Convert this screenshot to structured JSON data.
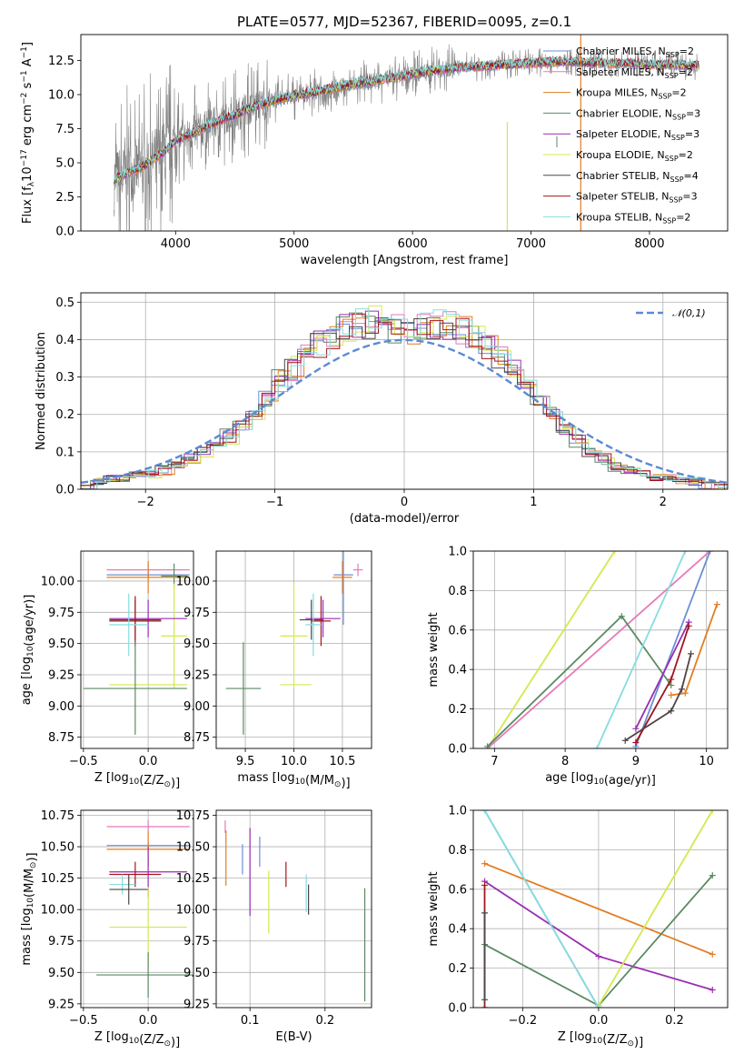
{
  "title": "PLATE=0577, MJD=52367, FIBERID=0095, z=0.1",
  "colors": {
    "Chabrier MILES": "#6a8fd6",
    "Salpeter MILES": "#e779b8",
    "Kroupa MILES": "#e37d25",
    "Chabrier ELODIE": "#5a8a63",
    "Salpeter ELODIE": "#9a2db3",
    "Kroupa ELODIE": "#d4e84c",
    "Chabrier STELIB": "#4e4446",
    "Salpeter STELIB": "#a3141c",
    "Kroupa STELIB": "#85dde0",
    "gaussian": "#5b8ad6",
    "grid": "#b0b0b0",
    "data": "#808080"
  },
  "chart_data": [
    {
      "id": "spectrum",
      "type": "line",
      "xlabel": "wavelength [Angstrom, rest frame]",
      "ylabel": "Flux [f$_\\lambda$10$^{-17}$ erg cm$^{-2}$ s$^{-1}$ A$^{-1}$]",
      "ylabel_parts": [
        "Flux [f",
        "λ",
        "10",
        "−17",
        " erg cm",
        "−2",
        " s",
        "−1",
        " A",
        "−1",
        "]"
      ],
      "xlim": [
        3200,
        8660
      ],
      "ylim": [
        0,
        14.4
      ],
      "xticks": [
        4000,
        5000,
        6000,
        7000,
        8000
      ],
      "yticks": [
        0.0,
        2.5,
        5.0,
        7.5,
        10.0,
        12.5
      ],
      "grid": false,
      "legend_position": "right",
      "legend": [
        {
          "name": "Chabrier MILES",
          "nssp": "2"
        },
        {
          "name": "Salpeter MILES",
          "nssp": "2"
        },
        {
          "name": "Kroupa MILES",
          "nssp": "2"
        },
        {
          "name": "Chabrier ELODIE",
          "nssp": "3"
        },
        {
          "name": "Salpeter ELODIE",
          "nssp": "3"
        },
        {
          "name": "Kroupa ELODIE",
          "nssp": "2"
        },
        {
          "name": "Chabrier STELIB",
          "nssp": "4"
        },
        {
          "name": "Salpeter STELIB",
          "nssp": "3"
        },
        {
          "name": "Kroupa STELIB",
          "nssp": "2"
        }
      ],
      "model_x": [
        3500,
        3600,
        3700,
        3800,
        3900,
        4000,
        4100,
        4200,
        4300,
        4400,
        4500,
        4600,
        4700,
        4800,
        4900,
        5000,
        5200,
        5400,
        5600,
        5800,
        6000,
        6200,
        6400,
        6600,
        6800,
        7000,
        7200,
        7400,
        7600,
        7800,
        8000,
        8200,
        8400
      ],
      "model_y": [
        3.8,
        4.3,
        4.6,
        5.2,
        5.8,
        6.6,
        7.0,
        7.4,
        7.8,
        8.2,
        8.5,
        8.9,
        9.2,
        9.5,
        9.7,
        9.9,
        10.2,
        10.6,
        10.9,
        11.2,
        11.5,
        11.8,
        12.0,
        12.1,
        12.2,
        12.3,
        12.4,
        12.4,
        12.3,
        12.3,
        12.2,
        12.2,
        12.1
      ],
      "data_amplitude": "large scatter below 4800 A, moderate above",
      "spikes": [
        {
          "x": 6800,
          "y0": 0.0,
          "y1": 8.0,
          "series": "Kroupa ELODIE"
        },
        {
          "x": 7420,
          "y0": 0.0,
          "y1": 14.4,
          "series": "Kroupa MILES"
        }
      ]
    },
    {
      "id": "residuals",
      "type": "histogram",
      "xlabel": "(data-model)/error",
      "ylabel": "Normed distribution",
      "xlim": [
        -2.5,
        2.5
      ],
      "ylim": [
        0,
        0.525
      ],
      "xticks": [
        -2,
        -1,
        0,
        1,
        2
      ],
      "yticks": [
        0.0,
        0.1,
        0.2,
        0.3,
        0.4,
        0.5
      ],
      "grid": true,
      "legend_position": "top-right",
      "curve_label": "𝒩(0,1)",
      "bin_edges": [
        -2.5,
        -2.4,
        -2.3,
        -2.2,
        -2.1,
        -2.0,
        -1.9,
        -1.8,
        -1.7,
        -1.6,
        -1.5,
        -1.4,
        -1.3,
        -1.2,
        -1.1,
        -1.0,
        -0.9,
        -0.8,
        -0.7,
        -0.6,
        -0.5,
        -0.4,
        -0.3,
        -0.2,
        -0.1,
        0.0,
        0.1,
        0.2,
        0.3,
        0.4,
        0.5,
        0.6,
        0.7,
        0.8,
        0.9,
        1.0,
        1.1,
        1.2,
        1.3,
        1.4,
        1.5,
        1.6,
        1.7,
        1.8,
        1.9,
        2.0,
        2.1,
        2.2,
        2.3,
        2.4,
        2.5
      ],
      "hist_values": [
        0.01,
        0.02,
        0.03,
        0.03,
        0.04,
        0.04,
        0.05,
        0.06,
        0.08,
        0.1,
        0.12,
        0.14,
        0.17,
        0.2,
        0.24,
        0.29,
        0.32,
        0.36,
        0.39,
        0.41,
        0.43,
        0.44,
        0.45,
        0.44,
        0.43,
        0.42,
        0.44,
        0.45,
        0.44,
        0.43,
        0.41,
        0.39,
        0.36,
        0.32,
        0.28,
        0.24,
        0.2,
        0.16,
        0.13,
        0.1,
        0.08,
        0.06,
        0.05,
        0.04,
        0.03,
        0.03,
        0.02,
        0.02,
        0.01,
        0.01
      ]
    },
    {
      "id": "age_vs_Z",
      "type": "errorbar",
      "xlabel": "Z [log10(Z/Z⊙)]",
      "ylabel": "age  [log10(age/yr)]",
      "xlim": [
        -0.52,
        0.35
      ],
      "ylim": [
        8.66,
        10.24
      ],
      "xticks": [
        -0.5,
        0.0
      ],
      "yticks": [
        8.75,
        9.0,
        9.25,
        9.5,
        9.75,
        10.0
      ],
      "grid": true,
      "points": [
        {
          "series": "Salpeter MILES",
          "x": 0.0,
          "xerr": 0.32,
          "y": 10.09,
          "yerr": 0.05
        },
        {
          "series": "Chabrier MILES",
          "x": 0.0,
          "xerr": 0.32,
          "y": 10.05,
          "yerr": 0.04
        },
        {
          "series": "Chabrier ELODIE",
          "x": 0.2,
          "xerr": 0.1,
          "y": 10.04,
          "yerr": 0.1
        },
        {
          "series": "Kroupa MILES",
          "x": 0.0,
          "xerr": 0.32,
          "y": 10.03,
          "yerr": 0.13
        },
        {
          "series": "Kroupa ELODIE",
          "x": 0.2,
          "xerr": 0.1,
          "y": 9.56,
          "yerr": 0.42
        },
        {
          "series": "Salpeter ELODIE",
          "x": 0.0,
          "xerr": 0.3,
          "y": 9.7,
          "yerr": 0.15
        },
        {
          "series": "Chabrier STELIB",
          "x": -0.1,
          "xerr": 0.2,
          "y": 9.69,
          "yerr": 0.16
        },
        {
          "series": "Salpeter STELIB",
          "x": -0.1,
          "xerr": 0.2,
          "y": 9.68,
          "yerr": 0.2
        },
        {
          "series": "Kroupa STELIB",
          "x": -0.15,
          "xerr": 0.15,
          "y": 9.65,
          "yerr": 0.25
        },
        {
          "series": "Kroupa ELODIE",
          "x": 0.0,
          "xerr": 0.3,
          "y": 9.17,
          "yerr": 0.0
        },
        {
          "series": "Chabrier ELODIE",
          "x": -0.1,
          "xerr": 0.4,
          "y": 9.14,
          "yerr": 0.37
        }
      ]
    },
    {
      "id": "age_vs_mass",
      "type": "errorbar",
      "xlabel": "mass [log10(M/M⊙)]",
      "ylabel": "",
      "xlim": [
        9.2,
        10.8
      ],
      "ylim": [
        8.66,
        10.24
      ],
      "xticks": [
        9.5,
        10.0,
        10.5
      ],
      "yticks": [
        8.75,
        9.0,
        9.25,
        9.5,
        9.75,
        10.0
      ],
      "grid": true,
      "points": [
        {
          "series": "Salpeter MILES",
          "x": 10.66,
          "xerr": 0.05,
          "y": 10.09,
          "yerr": 0.05
        },
        {
          "series": "Chabrier MILES",
          "x": 10.51,
          "xerr": 0.1,
          "y": 10.05,
          "yerr": 0.4
        },
        {
          "series": "Kroupa MILES",
          "x": 10.5,
          "xerr": 0.1,
          "y": 10.03,
          "yerr": 0.13
        },
        {
          "series": "Chabrier ELODIE",
          "x": 9.48,
          "xerr": 0.18,
          "y": 9.14,
          "yerr": 0.37
        },
        {
          "series": "Kroupa ELODIE",
          "x": 10.0,
          "xerr": 0.14,
          "y": 9.56,
          "yerr": 0.42
        },
        {
          "series": "Salpeter ELODIE",
          "x": 10.3,
          "xerr": 0.18,
          "y": 9.7,
          "yerr": 0.15
        },
        {
          "series": "Chabrier STELIB",
          "x": 10.18,
          "xerr": 0.12,
          "y": 9.69,
          "yerr": 0.16
        },
        {
          "series": "Salpeter STELIB",
          "x": 10.28,
          "xerr": 0.1,
          "y": 9.68,
          "yerr": 0.2
        },
        {
          "series": "Kroupa STELIB",
          "x": 10.2,
          "xerr": 0.08,
          "y": 9.65,
          "yerr": 0.25
        },
        {
          "series": "Kroupa ELODIE",
          "x": 10.02,
          "xerr": 0.16,
          "y": 9.17,
          "yerr": 0.0
        }
      ]
    },
    {
      "id": "weight_vs_age",
      "type": "line",
      "xlabel": "age  [log10(age/yr)]",
      "ylabel": "mass weight",
      "xlim": [
        6.7,
        10.3
      ],
      "ylim": [
        0,
        1.0
      ],
      "xticks": [
        7,
        8,
        9,
        10
      ],
      "yticks": [
        0.0,
        0.2,
        0.4,
        0.6,
        0.8,
        1.0
      ],
      "grid": true,
      "series": [
        {
          "name": "Kroupa ELODIE",
          "x": [
            6.9,
            8.7,
            10.2
          ],
          "y": [
            0.0,
            1.0,
            1.4
          ]
        },
        {
          "name": "Salpeter MILES",
          "x": [
            6.9,
            10.05,
            10.1
          ],
          "y": [
            0.0,
            1.0,
            1.05
          ]
        },
        {
          "name": "Chabrier ELODIE",
          "x": [
            6.9,
            8.8,
            9.5
          ],
          "y": [
            0.01,
            0.67,
            0.32
          ]
        },
        {
          "name": "Kroupa STELIB",
          "x": [
            8.45,
            9.7,
            10.1
          ],
          "y": [
            0.0,
            1.0,
            1.3
          ]
        },
        {
          "name": "Chabrier MILES",
          "x": [
            9.0,
            10.05
          ],
          "y": [
            0.01,
            1.0
          ]
        },
        {
          "name": "Kroupa MILES",
          "x": [
            9.5,
            9.7,
            10.15
          ],
          "y": [
            0.27,
            0.28,
            0.73
          ]
        },
        {
          "name": "Salpeter ELODIE",
          "x": [
            9.0,
            9.75
          ],
          "y": [
            0.1,
            0.64
          ]
        },
        {
          "name": "Salpeter STELIB",
          "x": [
            9.0,
            9.5,
            9.75
          ],
          "y": [
            0.03,
            0.35,
            0.62
          ]
        },
        {
          "name": "Chabrier STELIB",
          "x": [
            8.85,
            9.5,
            9.65,
            9.78
          ],
          "y": [
            0.04,
            0.19,
            0.3,
            0.48
          ]
        }
      ]
    },
    {
      "id": "mass_vs_Z",
      "type": "errorbar",
      "xlabel": "Z [log10(Z/Z⊙)]",
      "ylabel": "mass [log10(M/M⊙)]",
      "xlim": [
        -0.52,
        0.35
      ],
      "ylim": [
        9.22,
        10.79
      ],
      "xticks": [
        -0.5,
        0.0
      ],
      "yticks": [
        9.25,
        9.5,
        9.75,
        10.0,
        10.25,
        10.5,
        10.75
      ],
      "grid": true,
      "points": [
        {
          "series": "Salpeter MILES",
          "x": 0.0,
          "xerr": 0.32,
          "y": 10.66,
          "yerr": 0.05
        },
        {
          "series": "Chabrier MILES",
          "x": 0.0,
          "xerr": 0.32,
          "y": 10.51,
          "yerr": 0.03
        },
        {
          "series": "Kroupa MILES",
          "x": 0.0,
          "xerr": 0.32,
          "y": 10.48,
          "yerr": 0.14
        },
        {
          "series": "Salpeter ELODIE",
          "x": 0.0,
          "xerr": 0.3,
          "y": 10.3,
          "yerr": 0.2
        },
        {
          "series": "Salpeter STELIB",
          "x": -0.1,
          "xerr": 0.2,
          "y": 10.28,
          "yerr": 0.1
        },
        {
          "series": "Kroupa STELIB",
          "x": -0.2,
          "xerr": 0.1,
          "y": 10.2,
          "yerr": 0.08
        },
        {
          "series": "Chabrier STELIB",
          "x": -0.15,
          "xerr": 0.15,
          "y": 10.16,
          "yerr": 0.12
        },
        {
          "series": "Kroupa ELODIE",
          "x": 0.0,
          "xerr": 0.3,
          "y": 9.86,
          "yerr": 0.32
        },
        {
          "series": "Chabrier ELODIE",
          "x": 0.0,
          "xerr": 0.4,
          "y": 9.48,
          "yerr": 0.18
        }
      ]
    },
    {
      "id": "mass_vs_ebv",
      "type": "errorbar",
      "xlabel": "E(B-V)",
      "ylabel": "",
      "xlim": [
        0.055,
        0.262
      ],
      "ylim": [
        9.22,
        10.79
      ],
      "xticks": [
        0.1,
        0.2
      ],
      "yticks": [
        9.25,
        9.5,
        9.75,
        10.0,
        10.25,
        10.5,
        10.75
      ],
      "grid": true,
      "points": [
        {
          "series": "Salpeter MILES",
          "x": 0.067,
          "xerr": 0.0,
          "y": 10.66,
          "yerr": 0.05
        },
        {
          "series": "Kroupa MILES",
          "x": 0.068,
          "xerr": 0.0,
          "y": 10.41,
          "yerr": 0.22
        },
        {
          "series": "Chabrier MILES",
          "x": 0.09,
          "xerr": 0.0,
          "y": 10.4,
          "yerr": 0.12
        },
        {
          "series": "Salpeter ELODIE",
          "x": 0.1,
          "xerr": 0.0,
          "y": 10.3,
          "yerr": 0.35
        },
        {
          "series": "Kroupa ELODIE",
          "x": 0.125,
          "xerr": 0.0,
          "y": 10.06,
          "yerr": 0.25
        },
        {
          "series": "Chabrier MILES",
          "x": 0.113,
          "xerr": 0.0,
          "y": 10.46,
          "yerr": 0.12
        },
        {
          "series": "Salpeter STELIB",
          "x": 0.148,
          "xerr": 0.0,
          "y": 10.28,
          "yerr": 0.1
        },
        {
          "series": "Kroupa STELIB",
          "x": 0.175,
          "xerr": 0.0,
          "y": 10.13,
          "yerr": 0.15
        },
        {
          "series": "Chabrier STELIB",
          "x": 0.178,
          "xerr": 0.0,
          "y": 10.08,
          "yerr": 0.12
        },
        {
          "series": "Chabrier ELODIE",
          "x": 0.253,
          "xerr": 0.0,
          "y": 9.72,
          "yerr": 0.45
        }
      ]
    },
    {
      "id": "weight_vs_Z",
      "type": "line",
      "xlabel": "Z [log10(Z/Z⊙)]",
      "ylabel": "mass weight",
      "xlim": [
        -0.33,
        0.34
      ],
      "ylim": [
        0,
        1.0
      ],
      "xticks": [
        -0.2,
        0.0,
        0.2
      ],
      "yticks": [
        0.0,
        0.2,
        0.4,
        0.6,
        0.8,
        1.0
      ],
      "grid": true,
      "series": [
        {
          "name": "Kroupa MILES",
          "x": [
            -0.3,
            0.3
          ],
          "y": [
            0.73,
            0.27
          ]
        },
        {
          "name": "Salpeter ELODIE",
          "x": [
            -0.3,
            0.0,
            0.3
          ],
          "y": [
            0.64,
            0.26,
            0.09
          ]
        },
        {
          "name": "Chabrier ELODIE",
          "x": [
            -0.3,
            0.0,
            0.3
          ],
          "y": [
            0.32,
            0.01,
            0.67
          ]
        },
        {
          "name": "Kroupa ELODIE",
          "x": [
            0.0,
            0.3
          ],
          "y": [
            0.01,
            1.0
          ]
        },
        {
          "name": "Chabrier MILES",
          "x": [
            -0.3,
            0.0
          ],
          "y": [
            1.0,
            0.0
          ]
        },
        {
          "name": "Kroupa STELIB",
          "x": [
            -0.3,
            0.0
          ],
          "y": [
            1.0,
            0.0
          ]
        },
        {
          "name": "Salpeter STELIB",
          "x": [
            -0.3,
            -0.3
          ],
          "y": [
            0.0,
            0.62
          ]
        },
        {
          "name": "Chabrier STELIB",
          "x": [
            -0.3,
            -0.3
          ],
          "y": [
            0.04,
            0.48
          ]
        }
      ]
    }
  ]
}
